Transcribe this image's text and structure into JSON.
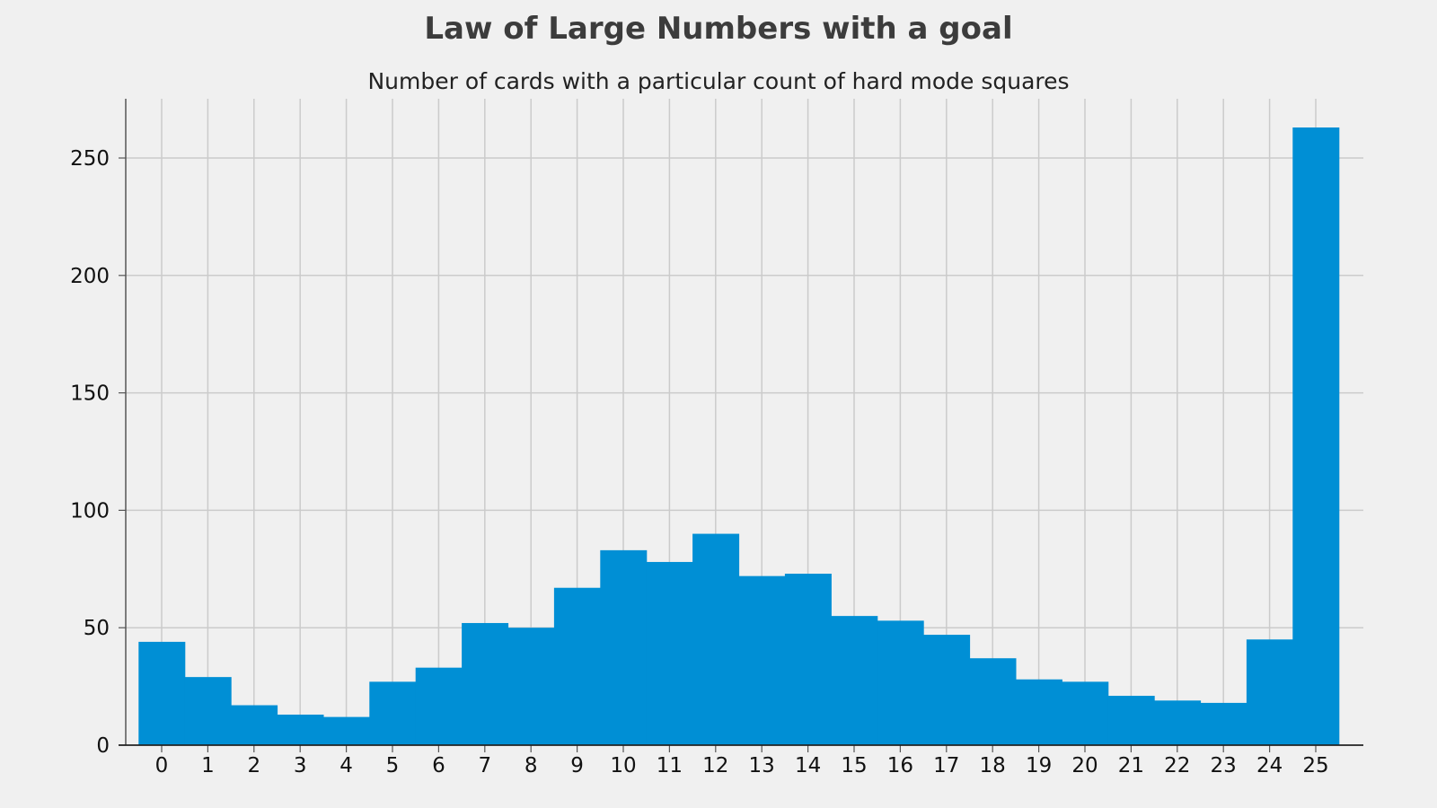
{
  "chart_data": {
    "type": "bar",
    "title": "Law of Large Numbers with a goal",
    "subtitle": "Number of cards with a particular count of hard mode squares",
    "xlabel": "",
    "ylabel": "",
    "categories": [
      "0",
      "1",
      "2",
      "3",
      "4",
      "5",
      "6",
      "7",
      "8",
      "9",
      "10",
      "11",
      "12",
      "13",
      "14",
      "15",
      "16",
      "17",
      "18",
      "19",
      "20",
      "21",
      "22",
      "23",
      "24",
      "25"
    ],
    "values": [
      44,
      29,
      17,
      13,
      12,
      27,
      33,
      52,
      50,
      67,
      83,
      78,
      90,
      72,
      73,
      55,
      53,
      47,
      37,
      28,
      27,
      21,
      19,
      18,
      45,
      263
    ],
    "y_ticks": [
      0,
      50,
      100,
      150,
      200,
      250
    ],
    "ylim": [
      0,
      276
    ],
    "grid": true,
    "bar_color": "#008fd5",
    "background": "#f0f0f0"
  }
}
